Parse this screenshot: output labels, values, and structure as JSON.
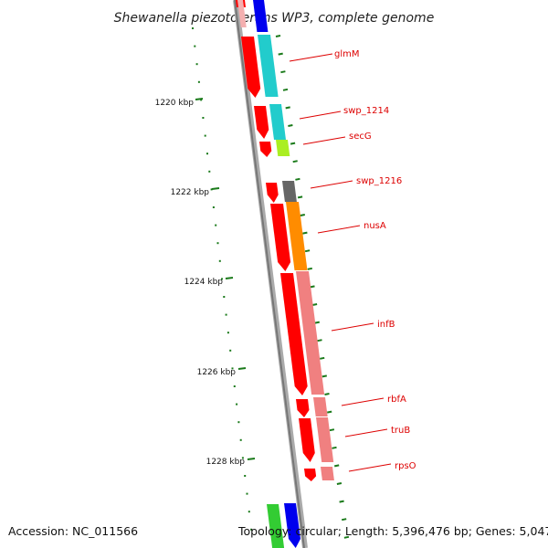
{
  "title": "Shewanella piezotolerans WP3, complete genome",
  "footer": {
    "accession": "Accession: NC_011566",
    "topology": "Topology: circular; Length: 5,396,476 bp; Genes: 5,047"
  },
  "ruler_labels": [
    "1220 kbp",
    "1222 kbp",
    "1224 kbp",
    "1226 kbp",
    "1228 kbp"
  ],
  "genes": [
    {
      "name": "glmM",
      "color": "#ff0000"
    },
    {
      "name": "swp_1214",
      "color": "#ff0000"
    },
    {
      "name": "secG",
      "color": "#ff0000"
    },
    {
      "name": "swp_1216",
      "color": "#ff0000"
    },
    {
      "name": "nusA",
      "color": "#ff0000"
    },
    {
      "name": "infB",
      "color": "#ff0000"
    },
    {
      "name": "rbfA",
      "color": "#ff0000"
    },
    {
      "name": "truB",
      "color": "#ff0000"
    },
    {
      "name": "rpsO",
      "color": "#ff0000"
    }
  ],
  "colors": {
    "backbone": "#888888",
    "cds": "#ff0000",
    "tick": "#1a7a1a",
    "label": "#dd0000",
    "cog_cyan": "#22cccc",
    "cog_green": "#aaee22",
    "cog_gray": "#666666",
    "cog_orange": "#ff8c00",
    "cog_pink": "#f08080",
    "blue": "#0000ee",
    "green": "#33cc33"
  }
}
